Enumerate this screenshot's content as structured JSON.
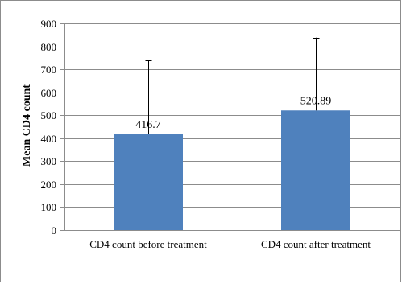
{
  "chart_data": {
    "type": "bar",
    "title": "",
    "xlabel": "",
    "ylabel": "Mean CD4 count",
    "ylim": [
      0,
      900
    ],
    "yticks": [
      0,
      100,
      200,
      300,
      400,
      500,
      600,
      700,
      800,
      900
    ],
    "grid": true,
    "legend": "none",
    "bar_color": "#4f81bd",
    "categories": [
      "CD4 count before treatment",
      "CD4 count after treatment"
    ],
    "values": [
      416.7,
      520.89
    ],
    "data_labels": [
      "416.7",
      "520.89"
    ],
    "error_upper": [
      740,
      838
    ]
  }
}
